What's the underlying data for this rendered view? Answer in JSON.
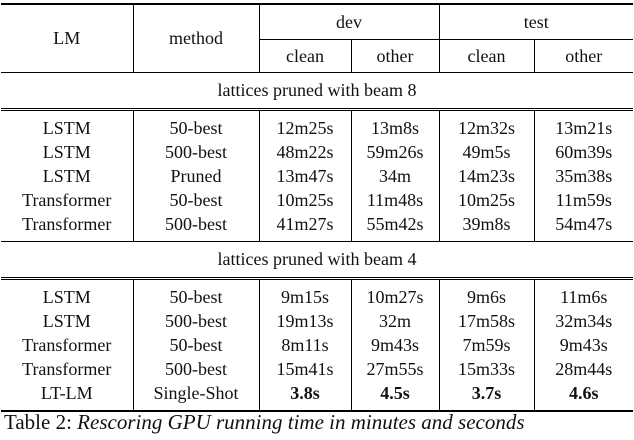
{
  "table": {
    "header": {
      "lm": "LM",
      "method": "method",
      "dev": "dev",
      "test": "test",
      "clean": "clean",
      "other": "other"
    },
    "sections": [
      {
        "title": "lattices pruned with beam 8",
        "rows": [
          {
            "lm": "LSTM",
            "method": "50-best",
            "dev_clean": "12m25s",
            "dev_other": "13m8s",
            "test_clean": "12m32s",
            "test_other": "13m21s"
          },
          {
            "lm": "LSTM",
            "method": "500-best",
            "dev_clean": "48m22s",
            "dev_other": "59m26s",
            "test_clean": "49m5s",
            "test_other": "60m39s"
          },
          {
            "lm": "LSTM",
            "method": "Pruned",
            "dev_clean": "13m47s",
            "dev_other": "34m",
            "test_clean": "14m23s",
            "test_other": "35m38s"
          },
          {
            "lm": "Transformer",
            "method": "50-best",
            "dev_clean": "10m25s",
            "dev_other": "11m48s",
            "test_clean": "10m25s",
            "test_other": "11m59s"
          },
          {
            "lm": "Transformer",
            "method": "500-best",
            "dev_clean": "41m27s",
            "dev_other": "55m42s",
            "test_clean": "39m8s",
            "test_other": "54m47s"
          }
        ]
      },
      {
        "title": "lattices pruned with beam 4",
        "rows": [
          {
            "lm": "LSTM",
            "method": "50-best",
            "dev_clean": "9m15s",
            "dev_other": "10m27s",
            "test_clean": "9m6s",
            "test_other": "11m6s"
          },
          {
            "lm": "LSTM",
            "method": "500-best",
            "dev_clean": "19m13s",
            "dev_other": "32m",
            "test_clean": "17m58s",
            "test_other": "32m34s"
          },
          {
            "lm": "Transformer",
            "method": "50-best",
            "dev_clean": "8m11s",
            "dev_other": "9m43s",
            "test_clean": "7m59s",
            "test_other": "9m43s"
          },
          {
            "lm": "Transformer",
            "method": "500-best",
            "dev_clean": "15m41s",
            "dev_other": "27m55s",
            "test_clean": "15m33s",
            "test_other": "28m44s"
          },
          {
            "lm": "LT-LM",
            "method": "Single-Shot",
            "dev_clean": "3.8s",
            "dev_other": "4.5s",
            "test_clean": "3.7s",
            "test_other": "4.6s",
            "bold": true
          }
        ]
      }
    ]
  },
  "caption": {
    "label": "Table 2:",
    "text": "Rescoring GPU running time in minutes and seconds"
  }
}
